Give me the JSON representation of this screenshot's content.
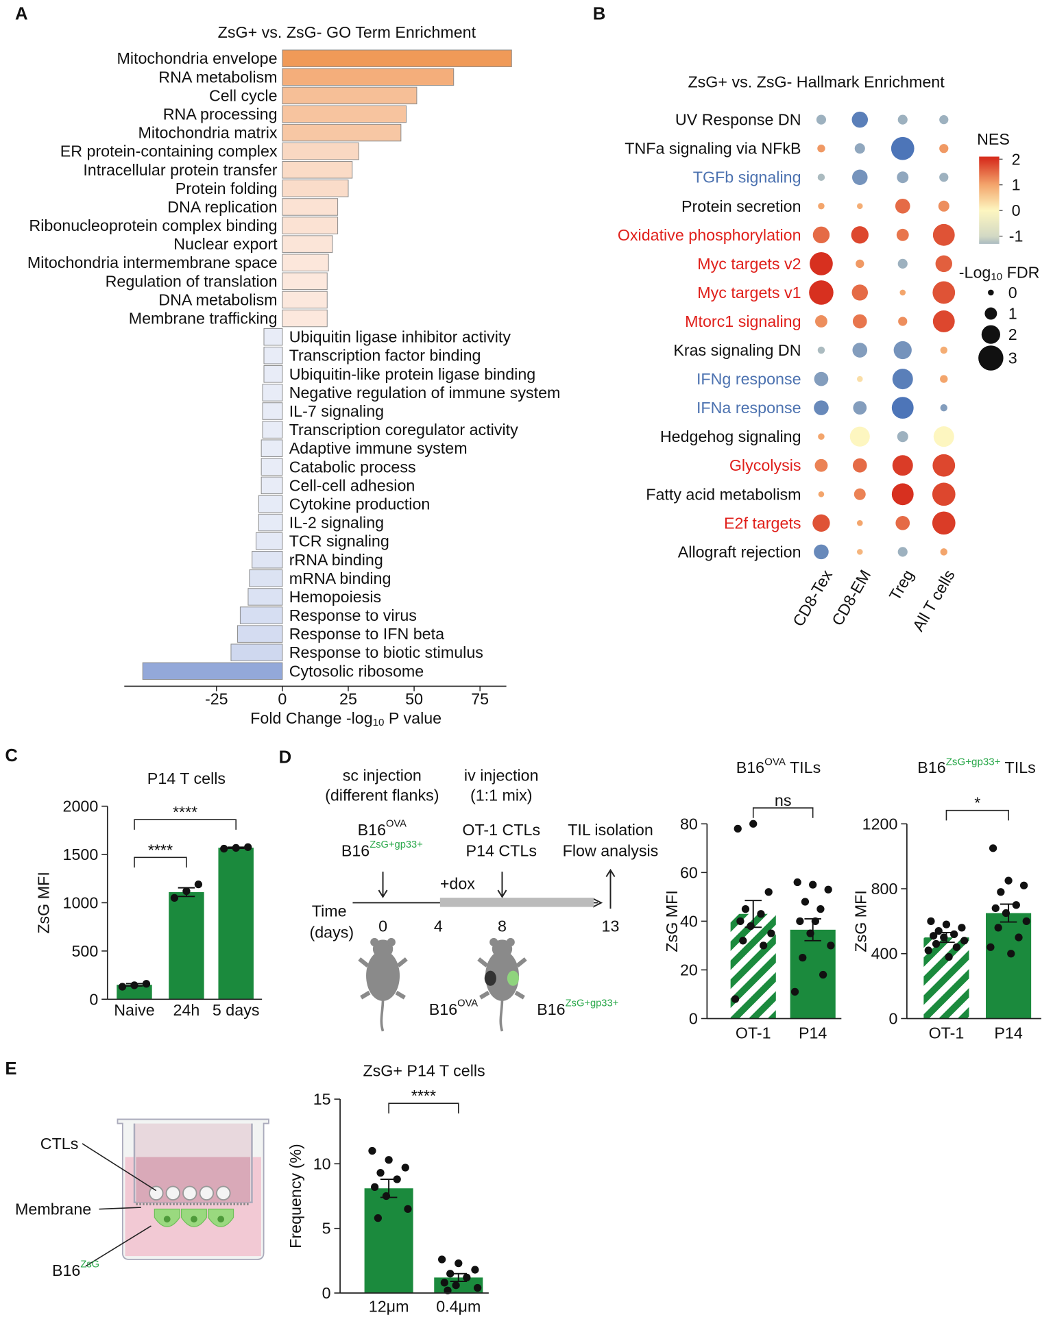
{
  "panel_labels": [
    "A",
    "B",
    "C",
    "D",
    "E"
  ],
  "chart_data": [
    {
      "type": "hbar",
      "title": "ZsG+ vs. ZsG- GO Term Enrichment",
      "xlabel": [
        {
          "text": "Fold Change -log"
        },
        {
          "text": "10",
          "sub": true
        },
        {
          "text": " P value"
        }
      ],
      "categories": [
        "Mitochondria envelope",
        "RNA metabolism",
        "Cell cycle",
        "RNA processing",
        "Mitochondria matrix",
        "ER protein-containing complex",
        "Intracellular protein transfer",
        "Protein folding",
        "DNA replication",
        "Ribonucleoprotein complex binding",
        "Nuclear export",
        "Mitochondria intermembrane space",
        "Regulation of translation",
        "DNA metabolism",
        "Membrane trafficking",
        "Ubiquitin ligase inhibitor activity",
        "Transcription factor binding",
        "Ubiquitin-like protein ligase binding",
        "Negative regulation of immune system",
        "IL-7 signaling",
        "Transcription coregulator activity",
        "Adaptive immune system",
        "Catabolic process",
        "Cell-cell adhesion",
        "Cytokine production",
        "IL-2 signaling",
        "TCR signaling",
        "rRNA binding",
        "mRNA binding",
        "Hemopoiesis",
        "Response to virus",
        "Response to IFN beta",
        "Response to biotic stimulus",
        "Cytosolic ribosome"
      ],
      "values": [
        87,
        65,
        51,
        47,
        45,
        29,
        26.5,
        25,
        21,
        21,
        19,
        17.5,
        17,
        17,
        17,
        -7,
        -7,
        -7,
        -7.5,
        -7.5,
        -7.5,
        -8,
        -8,
        -8,
        -9,
        -9,
        -10,
        -11.5,
        -12.5,
        -13,
        -16,
        -17,
        -19.5,
        -53
      ],
      "colors": [
        "#f09a58",
        "#f4ae7b",
        "#f6bf97",
        "#f7c49f",
        "#f7c7a4",
        "#f9d8c2",
        "#fadbc6",
        "#fadcc9",
        "#fbe2d3",
        "#fbe2d3",
        "#fbe5d8",
        "#fce7db",
        "#fce8dd",
        "#fce8dd",
        "#fce8dd",
        "#e8ecf7",
        "#e8ecf7",
        "#e8ecf7",
        "#e8ecf7",
        "#e8ecf7",
        "#e8ecf7",
        "#e8ecf7",
        "#e8ecf7",
        "#e8ecf7",
        "#e6ebf7",
        "#e6ebf7",
        "#e4e9f6",
        "#dfe5f4",
        "#dce3f3",
        "#dbe2f3",
        "#d6def2",
        "#d4dcf1",
        "#cfd8ef",
        "#93a8d9"
      ],
      "xlim": [
        -60,
        85
      ],
      "xticks": [
        -25,
        0,
        25,
        50,
        75
      ]
    },
    {
      "type": "dotplot",
      "title": "ZsG+ vs. ZsG- Hallmark Enrichment",
      "categories": [
        "UV Response DN",
        "TNFa signaling via NFkB",
        "TGFb signaling",
        "Protein secretion",
        "Oxidative phosphorylation",
        "Myc targets v2",
        "Myc targets v1",
        "Mtorc1 signaling",
        "Kras signaling DN",
        "IFNg response",
        "IFNa response",
        "Hedgehog signaling",
        "Glycolysis",
        "Fatty acid metabolism",
        "E2f targets",
        "Allograft rejection"
      ],
      "label_colors": [
        "#111111",
        "#111111",
        "#4c72b0",
        "#111111",
        "#e0201b",
        "#e0201b",
        "#e0201b",
        "#e0201b",
        "#111111",
        "#4c72b0",
        "#4c72b0",
        "#111111",
        "#e0201b",
        "#111111",
        "#e0201b",
        "#111111"
      ],
      "columns": [
        "CD8-Tex",
        "CD8-EM",
        "Treg",
        "All T cells"
      ],
      "nes": [
        [
          -1.4,
          -1.9,
          -1.4,
          -1.4
        ],
        [
          1.1,
          -1.5,
          -2,
          1.1
        ],
        [
          -1.3,
          -1.7,
          -1.5,
          -1.4
        ],
        [
          1,
          0.9,
          1.5,
          1.2
        ],
        [
          1.5,
          1.8,
          1.4,
          1.7
        ],
        [
          2,
          1.1,
          -1.4,
          1.6
        ],
        [
          2,
          1.5,
          1,
          1.7
        ],
        [
          1.2,
          1.4,
          1.2,
          1.8
        ],
        [
          -1.3,
          -1.6,
          -1.7,
          0.9
        ],
        [
          -1.6,
          0.3,
          -1.9,
          1
        ],
        [
          -1.8,
          -1.6,
          -2,
          -1.6
        ],
        [
          1,
          0,
          -1.4,
          0
        ],
        [
          1.3,
          1.5,
          1.9,
          1.8
        ],
        [
          1,
          1.3,
          2,
          1.8
        ],
        [
          1.7,
          1,
          1.5,
          1.9
        ],
        [
          -1.8,
          0.8,
          -1.4,
          1
        ]
      ],
      "fdr": [
        [
          0.6,
          1.6,
          0.6,
          0.5
        ],
        [
          0.3,
          0.7,
          2.7,
          0.5
        ],
        [
          0.2,
          1.5,
          0.9,
          0.5
        ],
        [
          0.1,
          0,
          1.4,
          0.8
        ],
        [
          1.7,
          1.8,
          1,
          2.5
        ],
        [
          2.7,
          0.4,
          0.6,
          1.7
        ],
        [
          2.9,
          1.6,
          0,
          2.6
        ],
        [
          1,
          1.3,
          0.5,
          2.5
        ],
        [
          0.2,
          1.4,
          1.9,
          0.2
        ],
        [
          1.3,
          0,
          2.3,
          0.3
        ],
        [
          1.4,
          1.2,
          2.5,
          0.2
        ],
        [
          0.1,
          2.2,
          0.8,
          2.3
        ],
        [
          1.1,
          1.3,
          2.3,
          2.6
        ],
        [
          0,
          0.9,
          2.5,
          2.7
        ],
        [
          1.8,
          0,
          1.3,
          2.7
        ],
        [
          1.4,
          0,
          0.6,
          0.2
        ]
      ],
      "color_title": "NES",
      "clim": [
        -1.3,
        2.1
      ],
      "cticks": [
        2,
        1,
        0,
        -1
      ],
      "color_stops": [
        {
          "value": -2,
          "color": "#4d75b8"
        },
        {
          "value": -1,
          "color": "#d3d9c4"
        },
        {
          "value": 0,
          "color": "#fdf6c0"
        },
        {
          "value": 1,
          "color": "#f3a56c"
        },
        {
          "value": 2,
          "color": "#d7301f"
        }
      ],
      "size_title": [
        {
          "text": "-Log"
        },
        {
          "text": "10",
          "sub": true
        },
        {
          "text": " FDR"
        }
      ],
      "size_legend": [
        0,
        1,
        2,
        3
      ]
    },
    {
      "type": "bar",
      "title": [
        {
          "text": "P14 T cells"
        }
      ],
      "ylabel": "ZsG MFI",
      "categories": [
        "Naive",
        "24h",
        "5 days"
      ],
      "values": [
        150,
        1110,
        1570
      ],
      "errors": [
        12,
        45,
        6
      ],
      "points": [
        [
          130,
          145,
          160
        ],
        [
          1050,
          1120,
          1190
        ],
        [
          1560,
          1568,
          1576
        ]
      ],
      "color": "#1b8a3d",
      "ylim": [
        0,
        2000
      ],
      "yticks": [
        0,
        500,
        1000,
        1500,
        2000
      ],
      "annotations": [
        "****",
        "****"
      ]
    },
    {
      "type": "bar",
      "title": [
        {
          "text": "B16"
        },
        {
          "text": "OVA",
          "sup": true
        },
        {
          "text": " TILs"
        }
      ],
      "ylabel": "ZsG MFI",
      "categories": [
        "OT-1",
        "P14"
      ],
      "values": [
        43,
        36.5
      ],
      "errors": [
        5.5,
        4.5
      ],
      "points": [
        [
          78,
          80,
          52,
          45,
          43,
          40,
          38,
          35,
          32,
          30,
          8
        ],
        [
          56,
          55,
          53,
          48,
          45,
          40,
          35,
          30,
          25,
          18,
          11,
          40
        ]
      ],
      "color": "#1b8a3d",
      "patterns": [
        "hatch",
        "solid"
      ],
      "ylim": [
        0,
        80
      ],
      "yticks": [
        0,
        20,
        40,
        60,
        80
      ],
      "annotations": [
        "ns"
      ]
    },
    {
      "type": "bar",
      "title": [
        {
          "text": "B16"
        },
        {
          "text": "ZsG+gp33+",
          "sup": true,
          "color": "#2aa84a"
        },
        {
          "text": " TILs"
        }
      ],
      "ylabel": "ZsG MFI",
      "categories": [
        "OT-1",
        "P14"
      ],
      "values": [
        500,
        650
      ],
      "errors": [
        30,
        55
      ],
      "points": [
        [
          600,
          580,
          560,
          540,
          520,
          510,
          500,
          480,
          460,
          440,
          420,
          380
        ],
        [
          1050,
          850,
          820,
          780,
          700,
          680,
          650,
          600,
          560,
          500,
          440,
          400
        ]
      ],
      "color": "#1b8a3d",
      "patterns": [
        "hatch",
        "solid"
      ],
      "ylim": [
        0,
        1200
      ],
      "yticks": [
        0,
        400,
        800,
        1200
      ],
      "annotations": [
        "*"
      ]
    },
    {
      "type": "bar",
      "title": [
        {
          "text": "ZsG+ P14 T cells"
        }
      ],
      "ylabel": "Frequency (%)",
      "categories": [
        "12μm",
        "0.4μm"
      ],
      "values": [
        8.1,
        1.2
      ],
      "errors": [
        0.7,
        0.3
      ],
      "points": [
        [
          11,
          10.3,
          9.7,
          9.3,
          8.8,
          8.2,
          7.5,
          6.5,
          5.8
        ],
        [
          2.6,
          2.3,
          1.8,
          1.5,
          1.2,
          0.8,
          0.6,
          0.4,
          0.2
        ]
      ],
      "color": "#1b8a3d",
      "ylim": [
        0,
        15
      ],
      "yticks": [
        0,
        5,
        10,
        15
      ],
      "annotations": [
        "****"
      ]
    }
  ],
  "diagram_d": {
    "steps": [
      [
        "sc injection",
        "(different flanks)"
      ],
      [
        "iv injection",
        "(1:1 mix)"
      ]
    ],
    "b16_ova": [
      "B16",
      "OVA"
    ],
    "b16_zsg": [
      "B16",
      "ZsG+gp33+"
    ],
    "cells": [
      "OT-1 CTLs",
      "P14 CTLs"
    ],
    "readout": [
      "TIL isolation",
      "Flow analysis"
    ],
    "dox": "+dox",
    "time": [
      "Time",
      "(days)"
    ],
    "days": [
      0,
      4,
      8,
      13
    ]
  },
  "diagram_e": {
    "ctls": "CTLs",
    "membrane": "Membrane",
    "b16_zsg": [
      "B16",
      "ZsG"
    ]
  }
}
